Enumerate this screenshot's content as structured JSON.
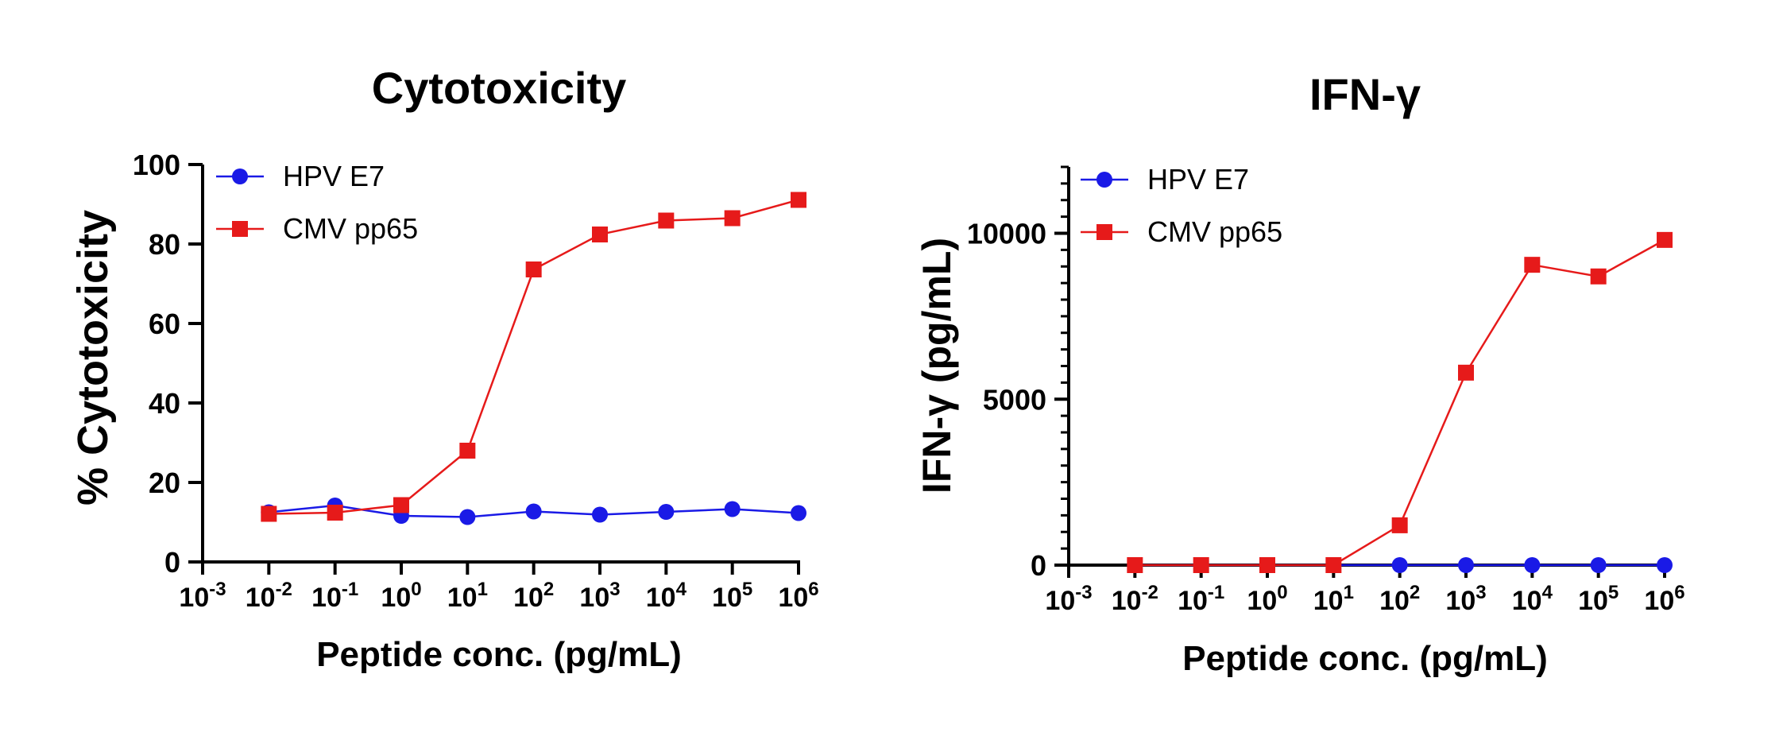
{
  "chart_data": [
    {
      "type": "line",
      "title": "Cytotoxicity",
      "xlabel": "Peptide conc. (pg/mL)",
      "ylabel": "% Cytotoxicity",
      "xscale": "log10",
      "xlim_exp": [
        -3,
        6
      ],
      "x_exponents": [
        -2,
        -1,
        0,
        1,
        2,
        3,
        4,
        5,
        6
      ],
      "x_tick_base": "10",
      "x_tick_exponents": [
        "-3",
        "-2",
        "-1",
        "0",
        "1",
        "2",
        "3",
        "4",
        "5",
        "6"
      ],
      "ylim": [
        0,
        100
      ],
      "y_ticks": [
        0,
        20,
        40,
        60,
        80,
        100
      ],
      "y_minor_ticks": [],
      "legend": "top-left",
      "series": [
        {
          "name": "HPV E7",
          "color": "#1a1ae6",
          "marker": "circle",
          "values": [
            12.5,
            14.2,
            11.6,
            11.3,
            12.7,
            11.9,
            12.6,
            13.3,
            12.3
          ]
        },
        {
          "name": "CMV pp65",
          "color": "#e61a1a",
          "marker": "square",
          "values": [
            12.1,
            12.4,
            14.3,
            28.0,
            73.6,
            82.4,
            85.9,
            86.5,
            91.1
          ]
        }
      ]
    },
    {
      "type": "line",
      "title": "IFN-γ",
      "xlabel": "Peptide conc. (pg/mL)",
      "ylabel": "IFN-γ (pg/mL)",
      "xscale": "log10",
      "xlim_exp": [
        -3,
        6
      ],
      "x_exponents": [
        -2,
        -1,
        0,
        1,
        2,
        3,
        4,
        5,
        6
      ],
      "x_tick_base": "10",
      "x_tick_exponents": [
        "-3",
        "-2",
        "-1",
        "0",
        "1",
        "2",
        "3",
        "4",
        "5",
        "6"
      ],
      "ylim": [
        0,
        12000
      ],
      "y_ticks": [
        0,
        5000,
        10000
      ],
      "y_minor_ticks": [
        500,
        1000,
        1500,
        2000,
        2500,
        3000,
        3500,
        4000,
        4500,
        5500,
        6000,
        6500,
        7000,
        7500,
        8000,
        8500,
        9000,
        9500,
        10500,
        11000,
        11500,
        12000
      ],
      "legend": "top-left",
      "series": [
        {
          "name": "HPV E7",
          "color": "#1a1ae6",
          "marker": "circle",
          "values": [
            0,
            0,
            0,
            0,
            0,
            0,
            0,
            0,
            0
          ]
        },
        {
          "name": "CMV pp65",
          "color": "#e61a1a",
          "marker": "square",
          "values": [
            0,
            0,
            0,
            0,
            1200,
            5800,
            9050,
            8700,
            9800
          ]
        }
      ]
    }
  ]
}
